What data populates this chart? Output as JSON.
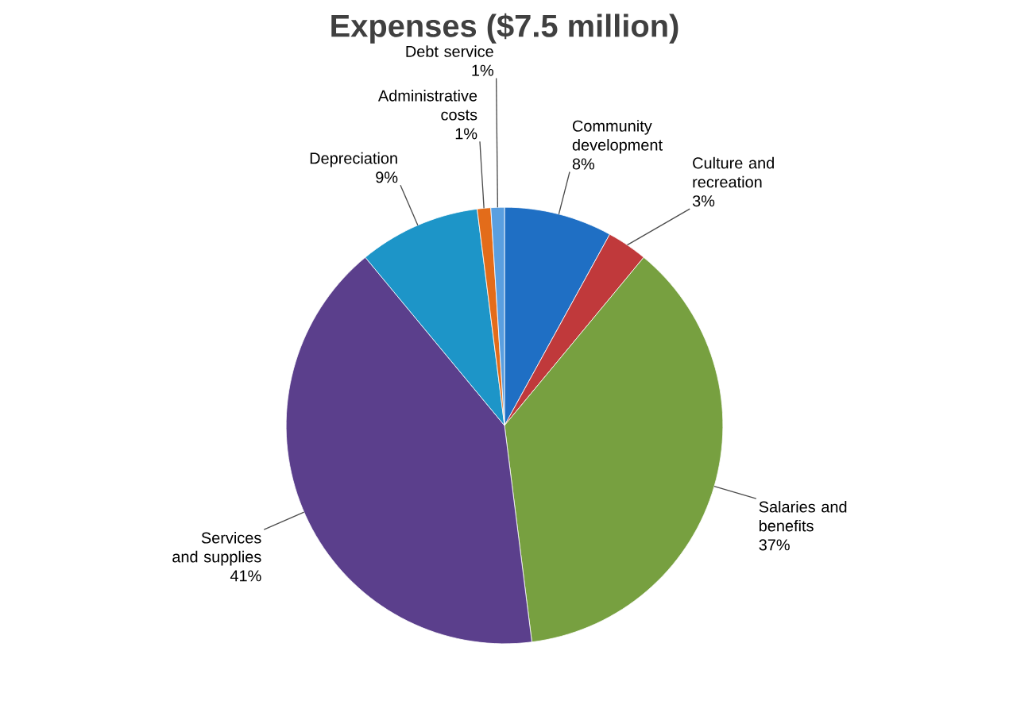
{
  "chart_data": {
    "type": "pie",
    "title": "Expenses ($7.5 million)",
    "categories": [
      "Community development",
      "Culture and recreation",
      "Salaries and benefits",
      "Services and supplies",
      "Depreciation",
      "Administrative costs",
      "Debt service"
    ],
    "values": [
      8,
      3,
      37,
      41,
      9,
      1,
      1
    ],
    "value_labels": [
      "8%",
      "3%",
      "37%",
      "41%",
      "9%",
      "1%",
      "1%"
    ],
    "colors": [
      "#1f6fc4",
      "#c0393b",
      "#77a040",
      "#5b3f8c",
      "#1d95c8",
      "#e36c1a",
      "#5a9fe0"
    ]
  }
}
